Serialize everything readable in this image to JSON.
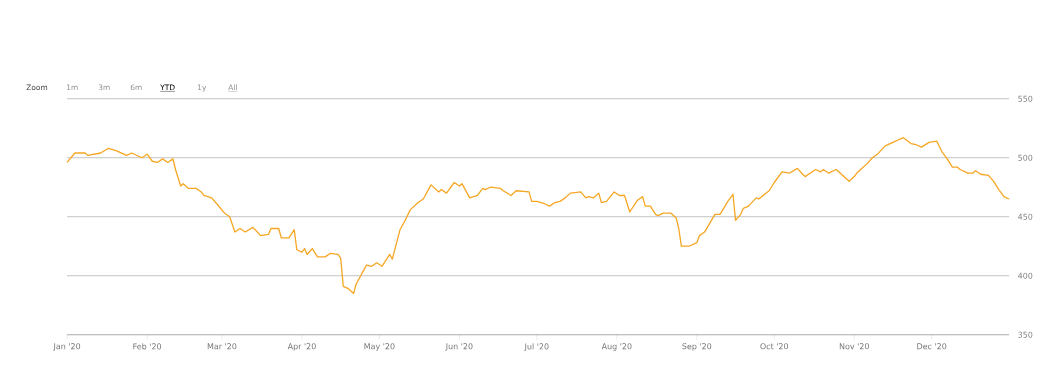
{
  "chart_data": {
    "type": "line",
    "color": "#f5a623",
    "annotations": [
      "Zoom",
      "1m",
      "3m",
      "6m",
      "YTD",
      "1y",
      "All"
    ],
    "x": [
      "2020-01-01",
      "2020-01-04",
      "2020-01-08",
      "2020-01-09",
      "2020-01-14",
      "2020-01-17",
      "2020-01-20",
      "2020-01-24",
      "2020-01-26",
      "2020-01-30",
      "2020-02-01",
      "2020-02-03",
      "2020-02-05",
      "2020-02-07",
      "2020-02-09",
      "2020-02-11",
      "2020-02-12",
      "2020-02-14",
      "2020-02-15",
      "2020-02-17",
      "2020-02-20",
      "2020-02-22",
      "2020-02-23",
      "2020-02-26",
      "2020-02-28",
      "2020-03-02",
      "2020-03-04",
      "2020-03-06",
      "2020-03-08",
      "2020-03-10",
      "2020-03-13",
      "2020-03-16",
      "2020-03-19",
      "2020-03-20",
      "2020-03-23",
      "2020-03-24",
      "2020-03-27",
      "2020-03-29",
      "2020-03-30",
      "2020-04-01",
      "2020-04-02",
      "2020-04-03",
      "2020-04-05",
      "2020-04-07",
      "2020-04-10",
      "2020-04-12",
      "2020-04-15",
      "2020-04-16",
      "2020-04-17",
      "2020-04-19",
      "2020-04-21",
      "2020-04-22",
      "2020-04-26",
      "2020-04-28",
      "2020-04-30",
      "2020-05-02",
      "2020-05-05",
      "2020-05-06",
      "2020-05-09",
      "2020-05-11",
      "2020-05-13",
      "2020-05-16",
      "2020-05-18",
      "2020-05-21",
      "2020-05-24",
      "2020-05-25",
      "2020-05-27",
      "2020-05-30",
      "2020-06-01",
      "2020-06-02",
      "2020-06-05",
      "2020-06-08",
      "2020-06-10",
      "2020-06-11",
      "2020-06-13",
      "2020-06-17",
      "2020-06-18",
      "2020-06-21",
      "2020-06-23",
      "2020-06-28",
      "2020-06-29",
      "2020-07-01",
      "2020-07-04",
      "2020-07-06",
      "2020-07-08",
      "2020-07-10",
      "2020-07-12",
      "2020-07-14",
      "2020-07-18",
      "2020-07-20",
      "2020-07-21",
      "2020-07-23",
      "2020-07-25",
      "2020-07-26",
      "2020-07-28",
      "2020-07-31",
      "2020-08-02",
      "2020-08-04",
      "2020-08-06",
      "2020-08-09",
      "2020-08-11",
      "2020-08-12",
      "2020-08-14",
      "2020-08-16",
      "2020-08-17",
      "2020-08-19",
      "2020-08-22",
      "2020-08-24",
      "2020-08-25",
      "2020-08-26",
      "2020-08-29",
      "2020-09-01",
      "2020-09-02",
      "2020-09-04",
      "2020-09-08",
      "2020-09-10",
      "2020-09-13",
      "2020-09-15",
      "2020-09-16",
      "2020-09-18",
      "2020-09-19",
      "2020-09-21",
      "2020-09-24",
      "2020-09-25",
      "2020-09-29",
      "2020-10-01",
      "2020-10-04",
      "2020-10-07",
      "2020-10-10",
      "2020-10-12",
      "2020-10-13",
      "2020-10-15",
      "2020-10-17",
      "2020-10-19",
      "2020-10-20",
      "2020-10-22",
      "2020-10-25",
      "2020-10-28",
      "2020-10-30",
      "2020-11-01",
      "2020-11-02",
      "2020-11-04",
      "2020-11-06",
      "2020-11-08",
      "2020-11-10",
      "2020-11-13",
      "2020-11-16",
      "2020-11-18",
      "2020-11-20",
      "2020-11-23",
      "2020-11-25",
      "2020-11-27",
      "2020-11-30",
      "2020-12-03",
      "2020-12-05",
      "2020-12-07",
      "2020-12-09",
      "2020-12-11",
      "2020-12-12",
      "2020-12-15",
      "2020-12-17",
      "2020-12-18",
      "2020-12-20",
      "2020-12-23",
      "2020-12-25",
      "2020-12-27",
      "2020-12-29",
      "2020-12-31"
    ],
    "values": [
      496,
      504,
      504,
      502,
      504,
      508,
      506,
      502,
      504,
      500,
      503,
      497,
      496,
      499,
      496,
      499,
      490,
      476,
      478,
      474,
      474,
      471,
      468,
      466,
      461,
      453,
      450,
      437,
      440,
      437,
      441,
      434,
      435,
      440,
      440,
      432,
      432,
      439,
      422,
      420,
      423,
      418,
      423,
      416,
      416,
      419,
      418,
      415,
      391,
      389,
      385,
      393,
      409,
      408,
      411,
      408,
      418,
      414,
      439,
      447,
      456,
      462,
      465,
      477,
      471,
      473,
      470,
      479,
      476,
      478,
      466,
      468,
      474,
      473,
      475,
      474,
      472,
      468,
      472,
      471,
      463,
      463,
      461,
      459,
      462,
      463,
      466,
      470,
      471,
      466,
      467,
      466,
      470,
      462,
      463,
      471,
      468,
      468,
      454,
      464,
      467,
      459,
      459,
      452,
      451,
      453,
      453,
      449,
      440,
      425,
      425,
      428,
      434,
      437,
      452,
      452,
      463,
      469,
      447,
      452,
      457,
      459,
      466,
      465,
      472,
      479,
      488,
      487,
      491,
      486,
      484,
      487,
      490,
      488,
      490,
      487,
      490,
      484,
      480,
      484,
      487,
      491,
      495,
      500,
      503,
      510,
      513,
      515,
      517,
      512,
      511,
      509,
      513,
      514,
      505,
      499,
      492,
      492,
      490,
      487,
      487,
      489,
      486,
      485,
      480,
      473,
      467,
      465
    ],
    "xlim": [
      "2020-01-01",
      "2020-12-31"
    ],
    "xticks": [
      {
        "value": "2020-01-01",
        "label": "Jan '20"
      },
      {
        "value": "2020-02-01",
        "label": "Feb '20"
      },
      {
        "value": "2020-03-01",
        "label": "Mar '20"
      },
      {
        "value": "2020-04-01",
        "label": "Apr '20"
      },
      {
        "value": "2020-05-01",
        "label": "May '20"
      },
      {
        "value": "2020-06-01",
        "label": "Jun '20"
      },
      {
        "value": "2020-07-01",
        "label": "Jul '20"
      },
      {
        "value": "2020-08-01",
        "label": "Aug '20"
      },
      {
        "value": "2020-09-01",
        "label": "Sep '20"
      },
      {
        "value": "2020-10-01",
        "label": "Oct '20"
      },
      {
        "value": "2020-11-01",
        "label": "Nov '20"
      },
      {
        "value": "2020-12-01",
        "label": "Dec '20"
      }
    ],
    "ylim": [
      350,
      550
    ],
    "yticks": [
      350,
      400,
      450,
      500,
      550
    ],
    "grid": "y",
    "legend": false,
    "marker": "none",
    "line_style": "solid"
  }
}
